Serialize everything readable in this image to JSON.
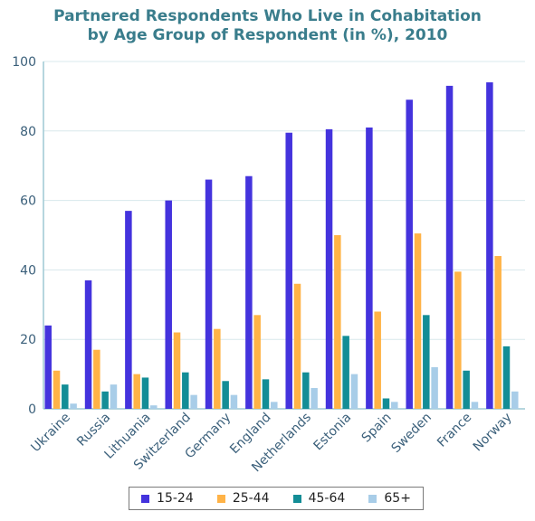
{
  "chart_data": {
    "type": "bar",
    "title": "Partnered Respondents Who Live in Cohabitation",
    "subtitle": "by Age Group of Respondent (in %), 2010",
    "categories": [
      "Ukraine",
      "Russia",
      "Lithuania",
      "Switzerland",
      "Germany",
      "England",
      "Netherlands",
      "Estonia",
      "Spain",
      "Sweden",
      "France",
      "Norway"
    ],
    "series": [
      {
        "name": "15-24",
        "color": "#4433dd",
        "values": [
          24,
          37,
          57,
          60,
          66,
          67,
          79.5,
          80.5,
          81,
          89,
          93,
          94
        ]
      },
      {
        "name": "25-44",
        "color": "#ffb347",
        "values": [
          11,
          17,
          10,
          22,
          23,
          27,
          36,
          50,
          28,
          50.5,
          39.5,
          44
        ]
      },
      {
        "name": "45-64",
        "color": "#138d96",
        "values": [
          7,
          5,
          9,
          10.5,
          8,
          8.5,
          10.5,
          21,
          3,
          27,
          11,
          18
        ]
      },
      {
        "name": "65+",
        "color": "#a8cde8",
        "values": [
          1.5,
          7,
          1,
          4,
          4,
          2,
          6,
          10,
          2,
          12,
          2,
          5
        ]
      }
    ],
    "ylim": [
      0,
      100
    ],
    "yticks": [
      0,
      20,
      40,
      60,
      80,
      100
    ],
    "grid": true,
    "legend": "bottom"
  }
}
